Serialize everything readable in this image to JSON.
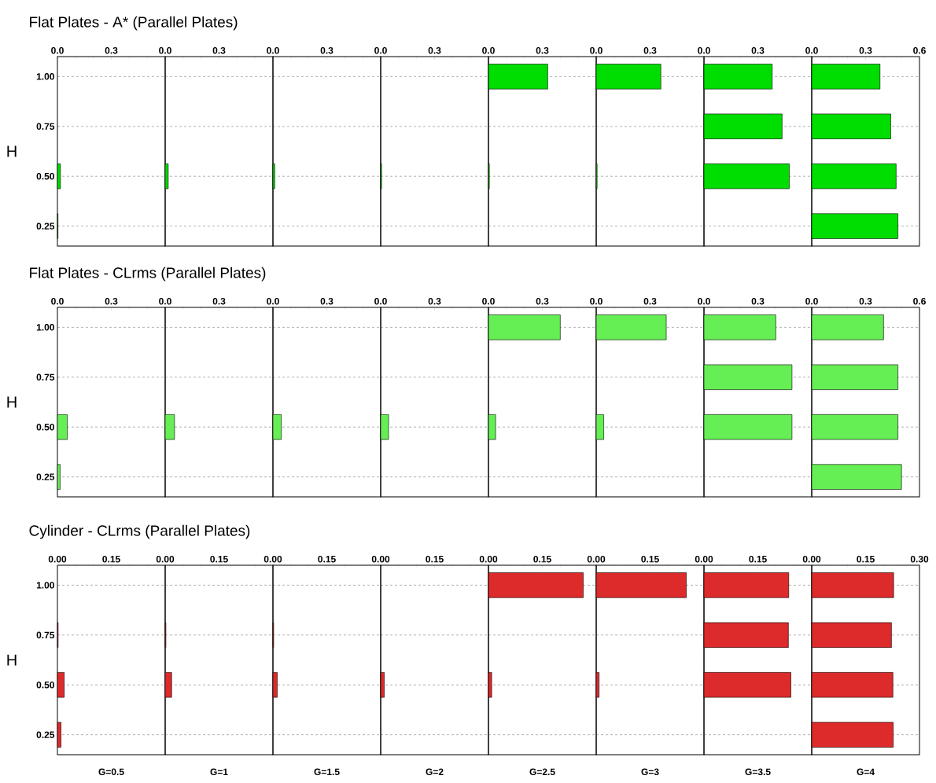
{
  "chart_data": [
    {
      "type": "bar",
      "orientation": "horizontal",
      "title": "Flat Plates - A*  (Parallel Plates)",
      "ylabel": "H",
      "categories": [
        "1.00",
        "0.75",
        "0.50",
        "0.25"
      ],
      "values": [
        null,
        null,
        0.017,
        0.003
      ],
      "color": "#00dd00",
      "xlim": [
        0,
        0.6
      ],
      "xticks": [
        {
          "value": 0,
          "label": "0.0"
        },
        0.3,
        {
          "value": 0.6,
          "label": null
        }
      ],
      "grid": "y"
    },
    {
      "type": "bar",
      "orientation": "horizontal",
      "categories": [
        "1.00",
        "0.75",
        "0.50",
        "0.25"
      ],
      "values": [
        null,
        null,
        0.017,
        null
      ],
      "color": "#00dd00",
      "xlim": [
        0,
        0.6
      ],
      "xticks": [
        {
          "value": 0,
          "label": "0.0"
        },
        0.3,
        {
          "value": 0.6,
          "label": null
        }
      ],
      "grid": "y",
      "tick_labels": "x"
    },
    {
      "type": "bar",
      "orientation": "horizontal",
      "categories": [
        "1.00",
        "0.75",
        "0.50",
        "0.25"
      ],
      "values": [
        null,
        null,
        0.01,
        null
      ],
      "color": "#00dd00",
      "xlim": [
        0,
        0.6
      ],
      "xticks": [
        {
          "value": 0,
          "label": "0.0"
        },
        0.3,
        {
          "value": 0.6,
          "label": null
        }
      ],
      "grid": "y",
      "tick_labels": "x"
    },
    {
      "type": "bar",
      "orientation": "horizontal",
      "categories": [
        "1.00",
        "0.75",
        "0.50",
        "0.25"
      ],
      "values": [
        null,
        null,
        0.005,
        null
      ],
      "color": "#00dd00",
      "xlim": [
        0,
        0.6
      ],
      "xticks": [
        {
          "value": 0,
          "label": "0.0"
        },
        0.3,
        {
          "value": 0.6,
          "label": null
        }
      ],
      "grid": "y",
      "tick_labels": "x"
    },
    {
      "type": "bar",
      "orientation": "horizontal",
      "categories": [
        "1.00",
        "0.75",
        "0.50",
        "0.25"
      ],
      "values": [
        0.33,
        null,
        0.005,
        null
      ],
      "color": "#00dd00",
      "xlim": [
        0,
        0.6
      ],
      "xticks": [
        {
          "value": 0,
          "label": "0.0"
        },
        0.3,
        {
          "value": 0.6,
          "label": null
        }
      ],
      "grid": "y",
      "tick_labels": "x"
    },
    {
      "type": "bar",
      "orientation": "horizontal",
      "categories": [
        "1.00",
        "0.75",
        "0.50",
        "0.25"
      ],
      "values": [
        0.36,
        null,
        0.005,
        null
      ],
      "color": "#00dd00",
      "xlim": [
        0,
        0.6
      ],
      "xticks": [
        {
          "value": 0,
          "label": "0.0"
        },
        0.3,
        {
          "value": 0.6,
          "label": null
        }
      ],
      "grid": "y",
      "tick_labels": "x"
    },
    {
      "type": "bar",
      "orientation": "horizontal",
      "categories": [
        "1.00",
        "0.75",
        "0.50",
        "0.25"
      ],
      "values": [
        0.38,
        0.435,
        0.475,
        null
      ],
      "color": "#00dd00",
      "xlim": [
        0,
        0.6
      ],
      "xticks": [
        {
          "value": 0,
          "label": "0.0"
        },
        0.3,
        {
          "value": 0.6,
          "label": null
        }
      ],
      "grid": "y",
      "tick_labels": "x"
    },
    {
      "type": "bar",
      "orientation": "horizontal",
      "categories": [
        "1.00",
        "0.75",
        "0.50",
        "0.25"
      ],
      "values": [
        0.38,
        0.44,
        0.47,
        0.48
      ],
      "color": "#00dd00",
      "xlim": [
        0,
        0.6
      ],
      "xticks": [
        {
          "value": 0,
          "label": "0.0"
        },
        0.3,
        0.6
      ],
      "grid": "y",
      "tick_labels": "x"
    },
    {
      "type": "bar",
      "orientation": "horizontal",
      "title": "Flat Plates - CLrms (Parallel Plates)",
      "ylabel": "H",
      "categories": [
        "1.00",
        "0.75",
        "0.50",
        "0.25"
      ],
      "values": [
        null,
        null,
        0.055,
        0.015
      ],
      "color": "#66ee55",
      "xlim": [
        0,
        0.6
      ],
      "xticks": [
        {
          "value": 0,
          "label": "0.0"
        },
        0.3,
        {
          "value": 0.6,
          "label": null
        }
      ],
      "grid": "y"
    },
    {
      "type": "bar",
      "orientation": "horizontal",
      "categories": [
        "1.00",
        "0.75",
        "0.50",
        "0.25"
      ],
      "values": [
        null,
        null,
        0.052,
        null
      ],
      "color": "#66ee55",
      "xlim": [
        0,
        0.6
      ],
      "xticks": [
        {
          "value": 0,
          "label": "0.0"
        },
        0.3,
        {
          "value": 0.6,
          "label": null
        }
      ],
      "grid": "y",
      "tick_labels": "x"
    },
    {
      "type": "bar",
      "orientation": "horizontal",
      "categories": [
        "1.00",
        "0.75",
        "0.50",
        "0.25"
      ],
      "values": [
        null,
        null,
        0.047,
        null
      ],
      "color": "#66ee55",
      "xlim": [
        0,
        0.6
      ],
      "xticks": [
        {
          "value": 0,
          "label": "0.0"
        },
        0.3,
        {
          "value": 0.6,
          "label": null
        }
      ],
      "grid": "y",
      "tick_labels": "x"
    },
    {
      "type": "bar",
      "orientation": "horizontal",
      "categories": [
        "1.00",
        "0.75",
        "0.50",
        "0.25"
      ],
      "values": [
        null,
        null,
        0.044,
        null
      ],
      "color": "#66ee55",
      "xlim": [
        0,
        0.6
      ],
      "xticks": [
        {
          "value": 0,
          "label": "0.0"
        },
        0.3,
        {
          "value": 0.6,
          "label": null
        }
      ],
      "grid": "y",
      "tick_labels": "x"
    },
    {
      "type": "bar",
      "orientation": "horizontal",
      "categories": [
        "1.00",
        "0.75",
        "0.50",
        "0.25"
      ],
      "values": [
        0.4,
        null,
        0.04,
        null
      ],
      "color": "#66ee55",
      "xlim": [
        0,
        0.6
      ],
      "xticks": [
        {
          "value": 0,
          "label": "0.0"
        },
        0.3,
        {
          "value": 0.6,
          "label": null
        }
      ],
      "grid": "y",
      "tick_labels": "x"
    },
    {
      "type": "bar",
      "orientation": "horizontal",
      "categories": [
        "1.00",
        "0.75",
        "0.50",
        "0.25"
      ],
      "values": [
        0.39,
        null,
        0.042,
        null
      ],
      "color": "#66ee55",
      "xlim": [
        0,
        0.6
      ],
      "xticks": [
        {
          "value": 0,
          "label": "0.0"
        },
        0.3,
        {
          "value": 0.6,
          "label": null
        }
      ],
      "grid": "y",
      "tick_labels": "x"
    },
    {
      "type": "bar",
      "orientation": "horizontal",
      "categories": [
        "1.00",
        "0.75",
        "0.50",
        "0.25"
      ],
      "values": [
        0.4,
        0.49,
        0.49,
        null
      ],
      "color": "#66ee55",
      "xlim": [
        0,
        0.6
      ],
      "xticks": [
        {
          "value": 0,
          "label": "0.0"
        },
        0.3,
        {
          "value": 0.6,
          "label": null
        }
      ],
      "grid": "y",
      "tick_labels": "x"
    },
    {
      "type": "bar",
      "orientation": "horizontal",
      "categories": [
        "1.00",
        "0.75",
        "0.50",
        "0.25"
      ],
      "values": [
        0.4,
        0.48,
        0.48,
        0.5
      ],
      "color": "#66ee55",
      "xlim": [
        0,
        0.6
      ],
      "xticks": [
        {
          "value": 0,
          "label": "0.0"
        },
        0.3,
        0.6
      ],
      "grid": "y",
      "tick_labels": "x"
    },
    {
      "type": "bar",
      "orientation": "horizontal",
      "title": "Cylinder - CLrms (Parallel Plates)",
      "ylabel": "H",
      "xlabel": "G=0.5",
      "categories": [
        "1.00",
        "0.75",
        "0.50",
        "0.25"
      ],
      "values": [
        null,
        0.002,
        0.019,
        0.01
      ],
      "color": "#dd2a2a",
      "xlim": [
        0,
        0.3
      ],
      "xticks": [
        {
          "value": 0,
          "label": "0.00"
        },
        0.15,
        {
          "value": 0.3,
          "label": null
        }
      ],
      "grid": "y"
    },
    {
      "type": "bar",
      "orientation": "horizontal",
      "xlabel": "G=1",
      "categories": [
        "1.00",
        "0.75",
        "0.50",
        "0.25"
      ],
      "values": [
        null,
        0.002,
        0.018,
        null
      ],
      "color": "#dd2a2a",
      "xlim": [
        0,
        0.3
      ],
      "xticks": [
        {
          "value": 0,
          "label": "0.00"
        },
        0.15,
        {
          "value": 0.3,
          "label": null
        }
      ],
      "grid": "y",
      "tick_labels": "x"
    },
    {
      "type": "bar",
      "orientation": "horizontal",
      "xlabel": "G=1.5",
      "categories": [
        "1.00",
        "0.75",
        "0.50",
        "0.25"
      ],
      "values": [
        null,
        0.002,
        0.012,
        null
      ],
      "color": "#dd2a2a",
      "xlim": [
        0,
        0.3
      ],
      "xticks": [
        {
          "value": 0,
          "label": "0.00"
        },
        0.15,
        {
          "value": 0.3,
          "label": null
        }
      ],
      "grid": "y",
      "tick_labels": "x"
    },
    {
      "type": "bar",
      "orientation": "horizontal",
      "xlabel": "G=2",
      "categories": [
        "1.00",
        "0.75",
        "0.50",
        "0.25"
      ],
      "values": [
        null,
        null,
        0.01,
        null
      ],
      "color": "#dd2a2a",
      "xlim": [
        0,
        0.3
      ],
      "xticks": [
        {
          "value": 0,
          "label": "0.00"
        },
        0.15,
        {
          "value": 0.3,
          "label": null
        }
      ],
      "grid": "y",
      "tick_labels": "x"
    },
    {
      "type": "bar",
      "orientation": "horizontal",
      "xlabel": "G=2.5",
      "categories": [
        "1.00",
        "0.75",
        "0.50",
        "0.25"
      ],
      "values": [
        0.264,
        null,
        0.009,
        null
      ],
      "color": "#dd2a2a",
      "xlim": [
        0,
        0.3
      ],
      "xticks": [
        {
          "value": 0,
          "label": "0.00"
        },
        0.15,
        {
          "value": 0.3,
          "label": null
        }
      ],
      "grid": "y",
      "tick_labels": "x"
    },
    {
      "type": "bar",
      "orientation": "horizontal",
      "xlabel": "G=3",
      "categories": [
        "1.00",
        "0.75",
        "0.50",
        "0.25"
      ],
      "values": [
        0.251,
        null,
        0.008,
        null
      ],
      "color": "#dd2a2a",
      "xlim": [
        0,
        0.3
      ],
      "xticks": [
        {
          "value": 0,
          "label": "0.00"
        },
        0.15,
        {
          "value": 0.3,
          "label": null
        }
      ],
      "grid": "y",
      "tick_labels": "x"
    },
    {
      "type": "bar",
      "orientation": "horizontal",
      "xlabel": "G=3.5",
      "categories": [
        "1.00",
        "0.75",
        "0.50",
        "0.25"
      ],
      "values": [
        0.236,
        0.235,
        0.242,
        null
      ],
      "color": "#dd2a2a",
      "xlim": [
        0,
        0.3
      ],
      "xticks": [
        {
          "value": 0,
          "label": "0.00"
        },
        0.15,
        {
          "value": 0.3,
          "label": null
        }
      ],
      "grid": "y",
      "tick_labels": "x"
    },
    {
      "type": "bar",
      "orientation": "horizontal",
      "xlabel": "G=4",
      "categories": [
        "1.00",
        "0.75",
        "0.50",
        "0.25"
      ],
      "values": [
        0.228,
        0.222,
        0.226,
        0.227
      ],
      "color": "#dd2a2a",
      "xlim": [
        0,
        0.3
      ],
      "xticks": [
        {
          "value": 0,
          "label": "0.00"
        },
        0.15,
        {
          "value": 0.3,
          "label": "0.30"
        }
      ],
      "grid": "y",
      "tick_labels": "x"
    }
  ]
}
